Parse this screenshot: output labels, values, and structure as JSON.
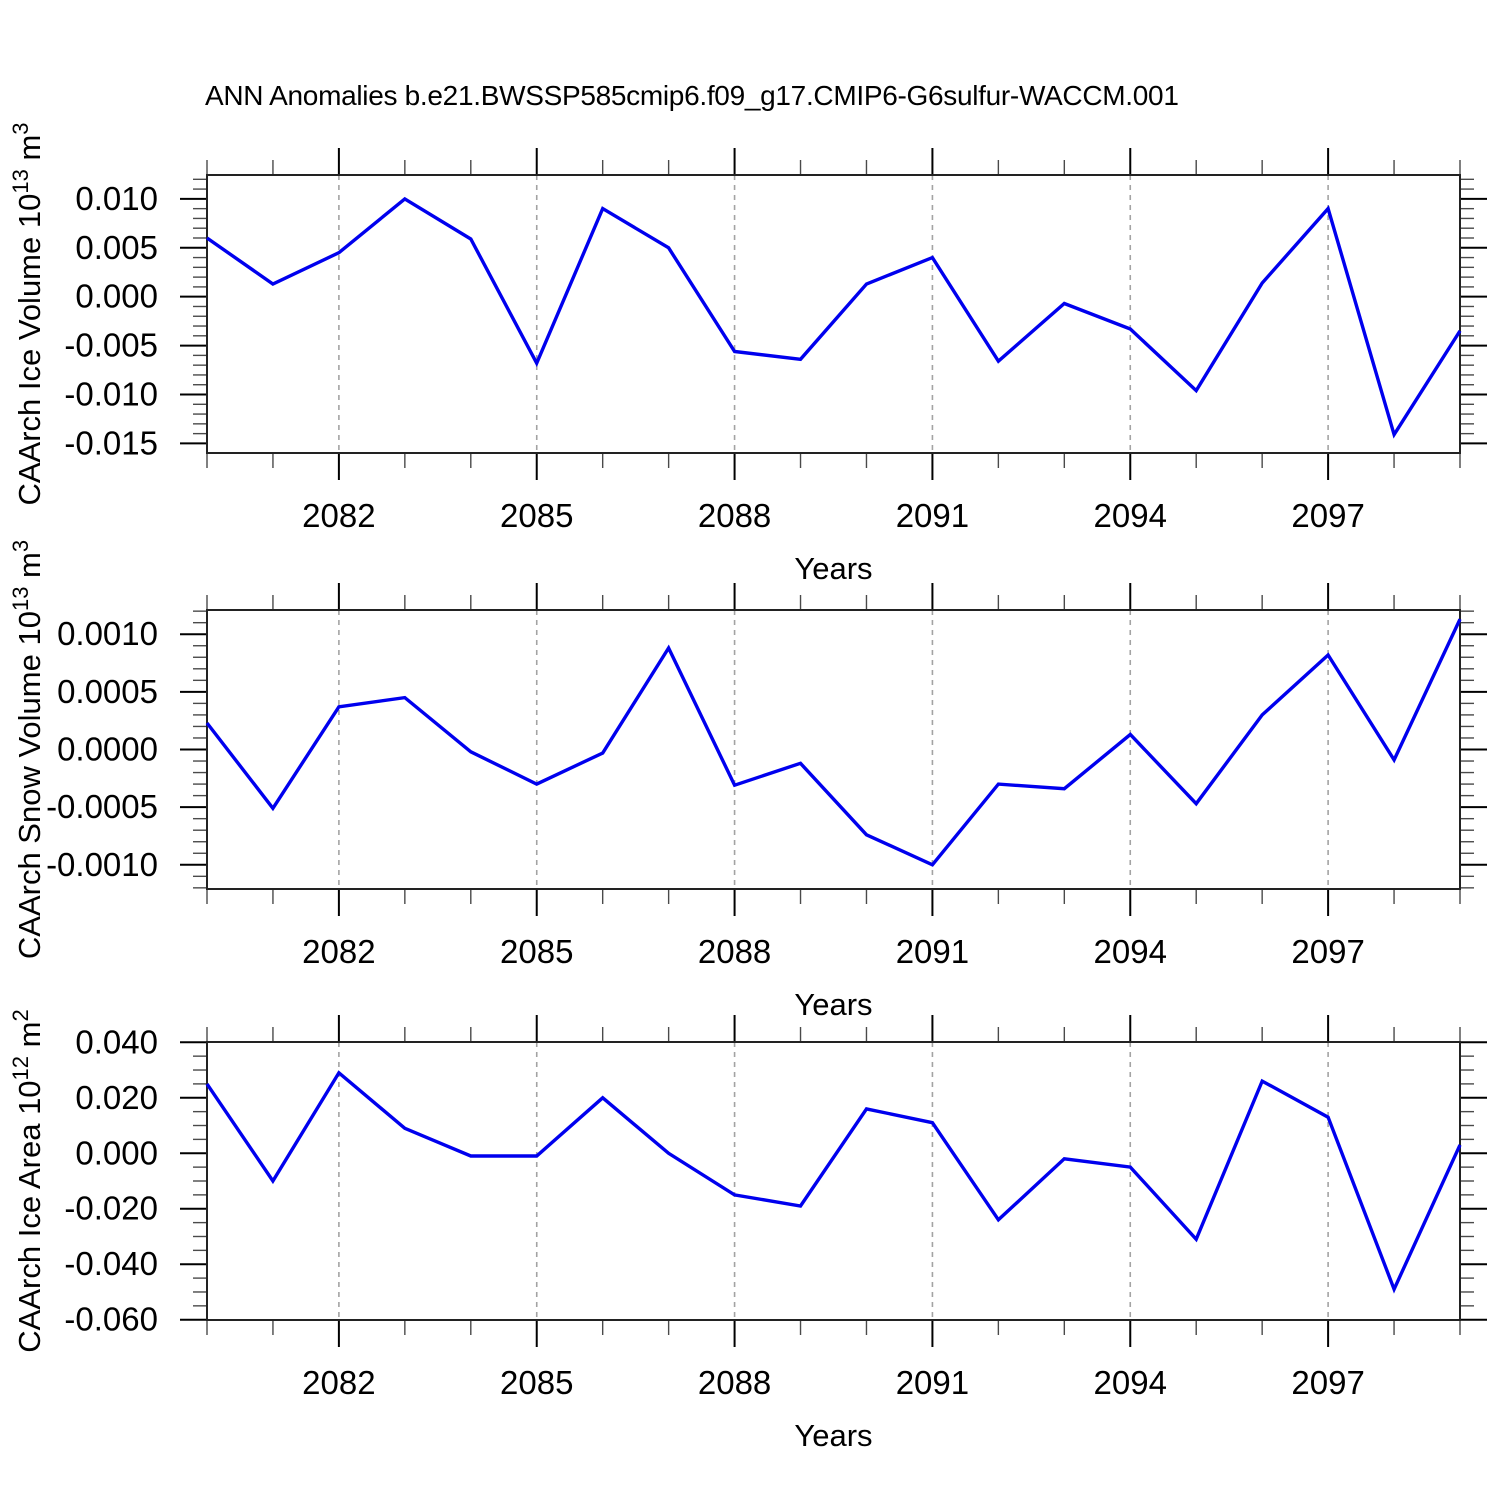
{
  "title": "ANN Anomalies b.e21.BWSSP585cmip6.f09_g17.CMIP6-G6sulfur-WACCM.001",
  "colors": {
    "line": "#0000ee",
    "grid": "#a3a3a3",
    "frame": "#222222",
    "major_tick": "#000000",
    "minor_tick": "#4a4a4a",
    "text": "#000000",
    "background": "#ffffff"
  },
  "chart_data": [
    {
      "type": "line",
      "ylabel_plain": "CAArch Ice Volume 10^13 m^3",
      "ylabel_parts": [
        {
          "t": "CAArch Ice Volume 10"
        },
        {
          "t": "13",
          "sup": true
        },
        {
          "t": " m"
        },
        {
          "t": "3",
          "sup": true
        }
      ],
      "xlabel": "Years",
      "x": [
        2080,
        2081,
        2082,
        2083,
        2084,
        2085,
        2086,
        2087,
        2088,
        2089,
        2090,
        2091,
        2092,
        2093,
        2094,
        2095,
        2096,
        2097,
        2098,
        2099
      ],
      "values": [
        0.006,
        0.0013,
        0.0045,
        0.01,
        0.0059,
        -0.0068,
        0.009,
        0.005,
        -0.0056,
        -0.0064,
        0.0013,
        0.004,
        -0.0066,
        -0.0007,
        -0.0033,
        -0.0096,
        0.0014,
        0.009,
        -0.0141,
        -0.0035
      ],
      "xlim": [
        2080,
        2099
      ],
      "ylim": [
        -0.01598,
        0.01244
      ],
      "xtick_values": [
        2082,
        2085,
        2088,
        2091,
        2094,
        2097
      ],
      "xtick_labels": [
        "2082",
        "2085",
        "2088",
        "2091",
        "2094",
        "2097"
      ],
      "xminor_step": 1,
      "ytick_values": [
        0.01,
        0.005,
        0.0,
        -0.005,
        -0.01,
        -0.015
      ],
      "ytick_labels": [
        "0.010",
        "0.005",
        "0.000",
        "-0.005",
        "-0.010",
        "-0.015"
      ],
      "ytick_step": 0.005,
      "yminor_step": 0.001,
      "grid": "vertical-dashed-at-major-xticks",
      "legend": "none"
    },
    {
      "type": "line",
      "ylabel_plain": "CAArch Snow Volume 10^13 m^3",
      "ylabel_parts": [
        {
          "t": "CAArch Snow Volume 10"
        },
        {
          "t": "13",
          "sup": true
        },
        {
          "t": " m"
        },
        {
          "t": "3",
          "sup": true
        }
      ],
      "xlabel": "Years",
      "x": [
        2080,
        2081,
        2082,
        2083,
        2084,
        2085,
        2086,
        2087,
        2088,
        2089,
        2090,
        2091,
        2092,
        2093,
        2094,
        2095,
        2096,
        2097,
        2098,
        2099
      ],
      "values": [
        0.00023,
        -0.00051,
        0.00037,
        0.00045,
        -2e-05,
        -0.0003,
        -3e-05,
        0.00088,
        -0.00031,
        -0.00012,
        -0.00074,
        -0.001,
        -0.0003,
        -0.00034,
        0.00013,
        -0.00047,
        0.0003,
        0.00082,
        -9e-05,
        0.00113
      ],
      "xlim": [
        2080,
        2099
      ],
      "ylim": [
        -0.00121,
        0.00121
      ],
      "xtick_values": [
        2082,
        2085,
        2088,
        2091,
        2094,
        2097
      ],
      "xtick_labels": [
        "2082",
        "2085",
        "2088",
        "2091",
        "2094",
        "2097"
      ],
      "xminor_step": 1,
      "ytick_values": [
        0.001,
        0.0005,
        0.0,
        -0.0005,
        -0.001
      ],
      "ytick_labels": [
        "0.0010",
        "0.0005",
        "0.0000",
        "-0.0005",
        "-0.0010"
      ],
      "ytick_step": 0.0005,
      "yminor_step": 0.0001,
      "grid": "vertical-dashed-at-major-xticks",
      "legend": "none"
    },
    {
      "type": "line",
      "ylabel_plain": "CAArch Ice Area 10^12 m^2",
      "ylabel_parts": [
        {
          "t": "CAArch Ice Area 10"
        },
        {
          "t": "12",
          "sup": true
        },
        {
          "t": " m"
        },
        {
          "t": "2",
          "sup": true
        }
      ],
      "xlabel": "Years",
      "x": [
        2080,
        2081,
        2082,
        2083,
        2084,
        2085,
        2086,
        2087,
        2088,
        2089,
        2090,
        2091,
        2092,
        2093,
        2094,
        2095,
        2096,
        2097,
        2098,
        2099
      ],
      "values": [
        0.025,
        -0.01,
        0.029,
        0.009,
        -0.001,
        -0.001,
        0.02,
        0.0,
        -0.015,
        -0.019,
        0.016,
        0.011,
        -0.024,
        -0.002,
        -0.005,
        -0.031,
        0.026,
        0.013,
        -0.049,
        0.003
      ],
      "xlim": [
        2080,
        2099
      ],
      "ylim": [
        -0.0601,
        0.0401
      ],
      "xtick_values": [
        2082,
        2085,
        2088,
        2091,
        2094,
        2097
      ],
      "xtick_labels": [
        "2082",
        "2085",
        "2088",
        "2091",
        "2094",
        "2097"
      ],
      "xminor_step": 1,
      "ytick_values": [
        0.04,
        0.02,
        0.0,
        -0.02,
        -0.04,
        -0.06
      ],
      "ytick_labels": [
        "0.040",
        "0.020",
        "0.000",
        "-0.020",
        "-0.040",
        "-0.060"
      ],
      "ytick_step": 0.02,
      "yminor_step": 0.005,
      "grid": "vertical-dashed-at-major-xticks",
      "legend": "none"
    }
  ]
}
